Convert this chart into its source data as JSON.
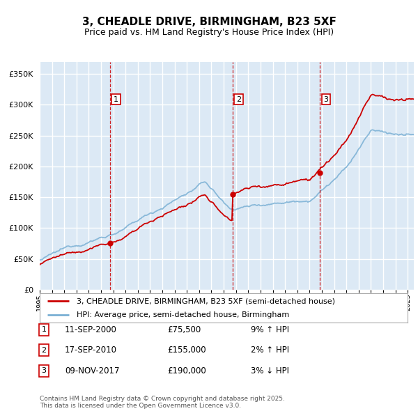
{
  "title_line1": "3, CHEADLE DRIVE, BIRMINGHAM, B23 5XF",
  "title_line2": "Price paid vs. HM Land Registry's House Price Index (HPI)",
  "background_color": "#ffffff",
  "plot_bg_color": "#dce9f5",
  "grid_color": "#ffffff",
  "hpi_line_color": "#7ab0d4",
  "price_line_color": "#cc0000",
  "sale_marker_color": "#cc0000",
  "vline_color": "#cc0000",
  "ylim": [
    0,
    370000
  ],
  "yticks": [
    0,
    50000,
    100000,
    150000,
    200000,
    250000,
    300000,
    350000
  ],
  "x_start_year": 1995,
  "x_end_year": 2025,
  "sales": [
    {
      "label": "1",
      "year": 2000.71,
      "price": 75500,
      "date_str": "11-SEP-2000",
      "pct": "9%",
      "dir": "↑"
    },
    {
      "label": "2",
      "year": 2010.71,
      "price": 155000,
      "date_str": "17-SEP-2010",
      "pct": "2%",
      "dir": "↑"
    },
    {
      "label": "3",
      "year": 2017.85,
      "price": 190000,
      "date_str": "09-NOV-2017",
      "pct": "3%",
      "dir": "↓"
    }
  ],
  "legend_line1": "3, CHEADLE DRIVE, BIRMINGHAM, B23 5XF (semi-detached house)",
  "legend_line2": "HPI: Average price, semi-detached house, Birmingham",
  "footer_line1": "Contains HM Land Registry data © Crown copyright and database right 2025.",
  "footer_line2": "This data is licensed under the Open Government Licence v3.0."
}
